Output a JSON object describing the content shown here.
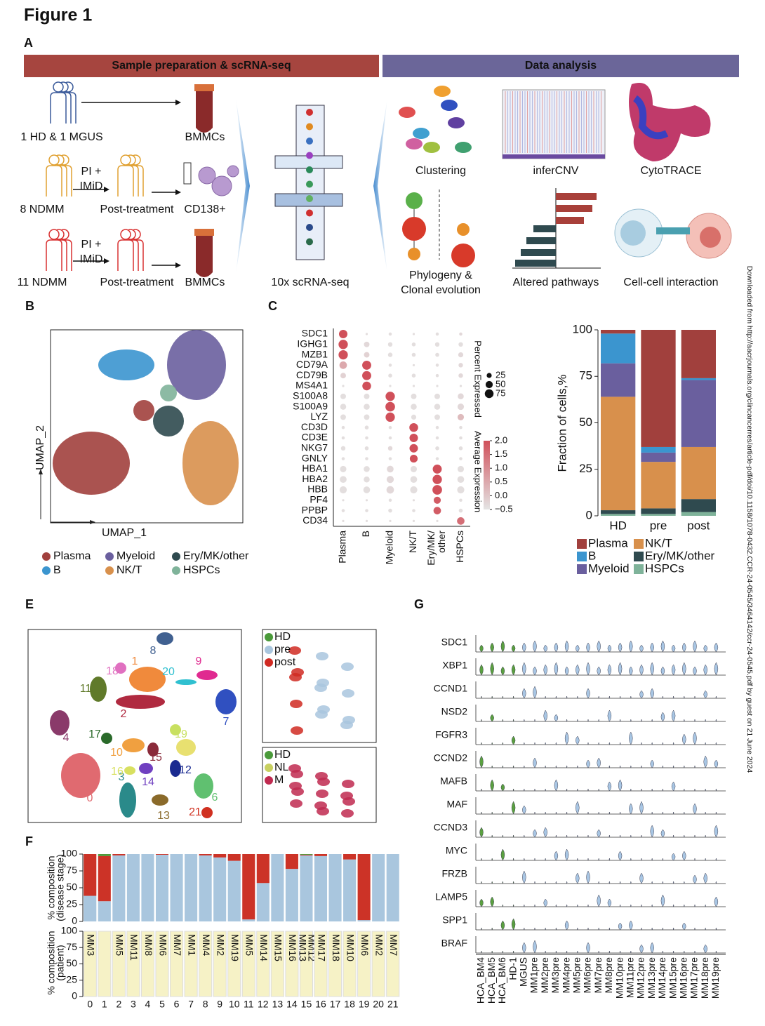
{
  "figure_title": "Figure 1",
  "side_note": "Downloaded from http://aacrjournals.org/clincancerres/article-pdf/doi/10.1158/1078-0432.CCR-24-0545/3464142/ccr-24-0545.pdf by guest on 21 June 2024",
  "panel_a": {
    "label": "A",
    "left_header": "Sample preparation & scRNA-seq",
    "right_header": "Data analysis",
    "rows": [
      {
        "group": "1 HD & 1 MGUS",
        "product": "BMMCs"
      },
      {
        "group": "8 NDMM",
        "treatment": [
          "PI +",
          "IMiD"
        ],
        "post": "Post-treatment",
        "product": "CD138+"
      },
      {
        "group": "11 NDMM",
        "treatment": [
          "PI +",
          "IMiD"
        ],
        "post": "Post-treatment",
        "product": "BMMCs"
      }
    ],
    "sequencing": "10x scRNA-seq",
    "analyses": [
      [
        "Clustering"
      ],
      [
        "inferCNV"
      ],
      [
        "CytoTRACE"
      ],
      [
        "Phylogeny &",
        "Clonal evolution"
      ],
      [
        "Altered pathways"
      ],
      [
        "Cell-cell interaction"
      ]
    ]
  },
  "panel_b": {
    "label": "B",
    "x_label": "UMAP_1",
    "y_label": "UMAP_2",
    "legend": [
      {
        "name": "Plasma",
        "color": "#a1403d"
      },
      {
        "name": "Myeloid",
        "color": "#6a5f9e"
      },
      {
        "name": "Ery/MK/other",
        "color": "#2f4a4f"
      },
      {
        "name": "B",
        "color": "#3b95cf"
      },
      {
        "name": "NK/T",
        "color": "#d8904c"
      },
      {
        "name": "HSPCs",
        "color": "#7fb39a"
      }
    ]
  },
  "panel_c": {
    "label": "C",
    "genes": [
      "SDC1",
      "IGHG1",
      "MZB1",
      "CD79A",
      "CD79B",
      "MS4A1",
      "S100A8",
      "S100A9",
      "LYZ",
      "CD3D",
      "CD3E",
      "NKG7",
      "GNLY",
      "HBA1",
      "HBA2",
      "HBB",
      "PF4",
      "PPBP",
      "CD34"
    ],
    "groups": [
      [
        "Plasma"
      ],
      [
        "B"
      ],
      [
        "Myeloid"
      ],
      [
        "NK/T"
      ],
      [
        "Ery/MK/",
        "other"
      ],
      [
        "HSPCs"
      ]
    ],
    "size_legend": {
      "title": "Percent Expressed",
      "ticks": [
        25,
        50,
        75
      ]
    },
    "color_legend": {
      "title": "Average Expression",
      "ticks": [
        {
          "value": 2,
          "label": "2.0"
        },
        {
          "value": 1.5,
          "label": "1.5"
        },
        {
          "value": 1,
          "label": "1.0"
        },
        {
          "value": 0.5,
          "label": "0.5"
        },
        {
          "value": 0,
          "label": "0.0"
        },
        {
          "value": -0.5,
          "label": "−0.5"
        }
      ]
    },
    "pct": [
      [
        70,
        5,
        10,
        5,
        10,
        10
      ],
      [
        85,
        30,
        20,
        15,
        20,
        20
      ],
      [
        85,
        30,
        20,
        15,
        15,
        25
      ],
      [
        55,
        80,
        10,
        5,
        10,
        20
      ],
      [
        30,
        80,
        15,
        15,
        10,
        20
      ],
      [
        5,
        75,
        5,
        5,
        5,
        5
      ],
      [
        30,
        30,
        85,
        30,
        30,
        35
      ],
      [
        35,
        35,
        90,
        35,
        35,
        40
      ],
      [
        30,
        30,
        85,
        25,
        30,
        40
      ],
      [
        10,
        15,
        10,
        75,
        10,
        10
      ],
      [
        10,
        10,
        10,
        70,
        10,
        10
      ],
      [
        20,
        15,
        20,
        70,
        15,
        15
      ],
      [
        10,
        10,
        10,
        60,
        10,
        10
      ],
      [
        40,
        35,
        45,
        40,
        80,
        40
      ],
      [
        45,
        35,
        50,
        45,
        85,
        45
      ],
      [
        50,
        45,
        55,
        50,
        90,
        50
      ],
      [
        5,
        5,
        10,
        5,
        50,
        10
      ],
      [
        10,
        10,
        15,
        10,
        55,
        15
      ],
      [
        5,
        5,
        5,
        5,
        5,
        55
      ]
    ],
    "avg": [
      [
        2,
        -0.4,
        -0.4,
        -0.4,
        -0.4,
        -0.3
      ],
      [
        2,
        -0.3,
        -0.4,
        -0.4,
        -0.4,
        -0.4
      ],
      [
        2,
        -0.2,
        -0.4,
        -0.4,
        -0.4,
        -0.3
      ],
      [
        0.5,
        2,
        -0.4,
        -0.4,
        -0.4,
        -0.3
      ],
      [
        -0.2,
        2,
        -0.4,
        -0.4,
        -0.4,
        -0.3
      ],
      [
        -0.4,
        2,
        -0.4,
        -0.4,
        -0.4,
        -0.4
      ],
      [
        -0.4,
        -0.4,
        2,
        -0.4,
        -0.4,
        -0.3
      ],
      [
        -0.4,
        -0.4,
        2,
        -0.4,
        -0.4,
        -0.3
      ],
      [
        -0.4,
        -0.4,
        2,
        -0.4,
        -0.4,
        0.2
      ],
      [
        -0.4,
        -0.4,
        -0.4,
        2,
        -0.4,
        -0.4
      ],
      [
        -0.4,
        -0.4,
        -0.4,
        2,
        -0.4,
        -0.4
      ],
      [
        -0.4,
        -0.4,
        -0.3,
        2,
        -0.4,
        -0.4
      ],
      [
        -0.4,
        -0.4,
        -0.4,
        2,
        -0.4,
        -0.4
      ],
      [
        -0.4,
        -0.4,
        -0.3,
        -0.4,
        2,
        -0.4
      ],
      [
        -0.4,
        -0.4,
        -0.3,
        -0.4,
        2,
        -0.4
      ],
      [
        -0.4,
        -0.4,
        -0.3,
        -0.4,
        2,
        -0.4
      ],
      [
        -0.4,
        -0.4,
        -0.4,
        -0.4,
        1.8,
        -0.4
      ],
      [
        -0.4,
        -0.4,
        -0.4,
        -0.4,
        1.8,
        -0.4
      ],
      [
        -0.4,
        -0.4,
        -0.4,
        -0.4,
        -0.4,
        1.5
      ]
    ]
  },
  "panel_e": {
    "label": "E",
    "clusters": [
      "0",
      "1",
      "2",
      "3",
      "4",
      "5",
      "6",
      "7",
      "8",
      "9",
      "10",
      "11",
      "12",
      "13",
      "14",
      "15",
      "16",
      "17",
      "18",
      "19",
      "20",
      "21"
    ],
    "inset_stage": [
      {
        "name": "HD",
        "color": "#4a9a3a"
      },
      {
        "name": "pre",
        "color": "#a9c6de"
      },
      {
        "name": "post",
        "color": "#d02a22"
      }
    ],
    "inset_group": [
      {
        "name": "HD",
        "color": "#4a9a3a"
      },
      {
        "name": "NL",
        "color": "#c8d060"
      },
      {
        "name": "M",
        "color": "#c02a50"
      }
    ]
  },
  "panel_f": {
    "label": "F",
    "patient_y_label": [
      "% composition",
      "(patient)"
    ],
    "patient_labels": [
      [
        "MM3"
      ],
      [],
      [
        "MM5"
      ],
      [
        "MM11"
      ],
      [
        "MM8"
      ],
      [
        "MM6"
      ],
      [
        "MM7"
      ],
      [
        "MM1"
      ],
      [
        "MM4"
      ],
      [
        "MM2"
      ],
      [
        "MM19"
      ],
      [
        "MM5"
      ],
      [
        "MM14"
      ],
      [
        "MM15"
      ],
      [
        "MM16"
      ],
      [
        "MM13",
        "MM12"
      ],
      [
        "MM17"
      ],
      [
        "MM18"
      ],
      [
        "MM10"
      ],
      [
        "MM6"
      ],
      [
        "MM2"
      ],
      [
        "MM7"
      ]
    ]
  },
  "panel_g": {
    "label": "G",
    "genes": [
      "SDC1",
      "XBP1",
      "CCND1",
      "NSD2",
      "FGFR3",
      "CCND2",
      "MAFB",
      "MAF",
      "CCND3",
      "MYC",
      "FRZB",
      "LAMP5",
      "SPP1",
      "BRAF"
    ],
    "samples": [
      "HCA_BM4",
      "HCA_BM5",
      "HCA_BM6",
      "HD-1",
      "MGUS",
      "MM1pre",
      "MM2pre",
      "MM3pre",
      "MM4pre",
      "MM5pre",
      "MM6pre",
      "MM7pre",
      "MM8pre",
      "MM10pre",
      "MM11pre",
      "MM12pre",
      "MM13pre",
      "MM14pre",
      "MM15pre",
      "MM16pre",
      "MM17pre",
      "MM18pre",
      "MM19pre"
    ]
  },
  "chart_data": [
    {
      "type": "bar",
      "stacked": true,
      "y_label": "Fraction of cells,%",
      "categories": [
        "HD",
        "pre",
        "post"
      ],
      "ylim": [
        0,
        100
      ],
      "yticks": [
        0,
        25,
        50,
        75,
        100
      ],
      "series": [
        {
          "name": "HSPCs",
          "color": "#7fb39a",
          "values": [
            1,
            1,
            2
          ]
        },
        {
          "name": "Ery/MK/other",
          "color": "#2f4a4f",
          "values": [
            2,
            3,
            7
          ]
        },
        {
          "name": "NK/T",
          "color": "#d8904c",
          "values": [
            61,
            25,
            28
          ]
        },
        {
          "name": "Myeloid",
          "color": "#6a5f9e",
          "values": [
            18,
            5,
            36
          ]
        },
        {
          "name": "B",
          "color": "#3b95cf",
          "values": [
            16,
            3,
            1
          ]
        },
        {
          "name": "Plasma",
          "color": "#a1403d",
          "values": [
            2,
            63,
            26
          ]
        }
      ]
    },
    {
      "type": "bar",
      "stacked": true,
      "y_label": [
        "% composition",
        "(disease stage)"
      ],
      "categories": [
        "0",
        "1",
        "2",
        "3",
        "4",
        "5",
        "6",
        "7",
        "8",
        "9",
        "10",
        "11",
        "12",
        "13",
        "14",
        "15",
        "16",
        "17",
        "18",
        "19",
        "20",
        "21"
      ],
      "ylim": [
        0,
        100
      ],
      "yticks": [
        0,
        25,
        50,
        75,
        100
      ],
      "series": [
        {
          "name": "pre",
          "color": "#a9c6de",
          "values": [
            38,
            30,
            98,
            100,
            100,
            99,
            100,
            100,
            98,
            95,
            90,
            3,
            57,
            100,
            78,
            98,
            97,
            100,
            92,
            2,
            100,
            100
          ]
        },
        {
          "name": "post",
          "color": "#cc3327",
          "values": [
            62,
            67,
            2,
            0,
            0,
            1,
            0,
            0,
            2,
            5,
            10,
            97,
            43,
            0,
            22,
            1,
            3,
            0,
            8,
            98,
            0,
            0
          ]
        },
        {
          "name": "HD",
          "color": "#4f9a3a",
          "values": [
            0,
            3,
            0,
            0,
            0,
            0,
            0,
            0,
            0,
            0,
            0,
            0,
            0,
            0,
            0,
            1,
            0,
            0,
            0,
            0,
            0,
            0
          ]
        }
      ]
    }
  ]
}
